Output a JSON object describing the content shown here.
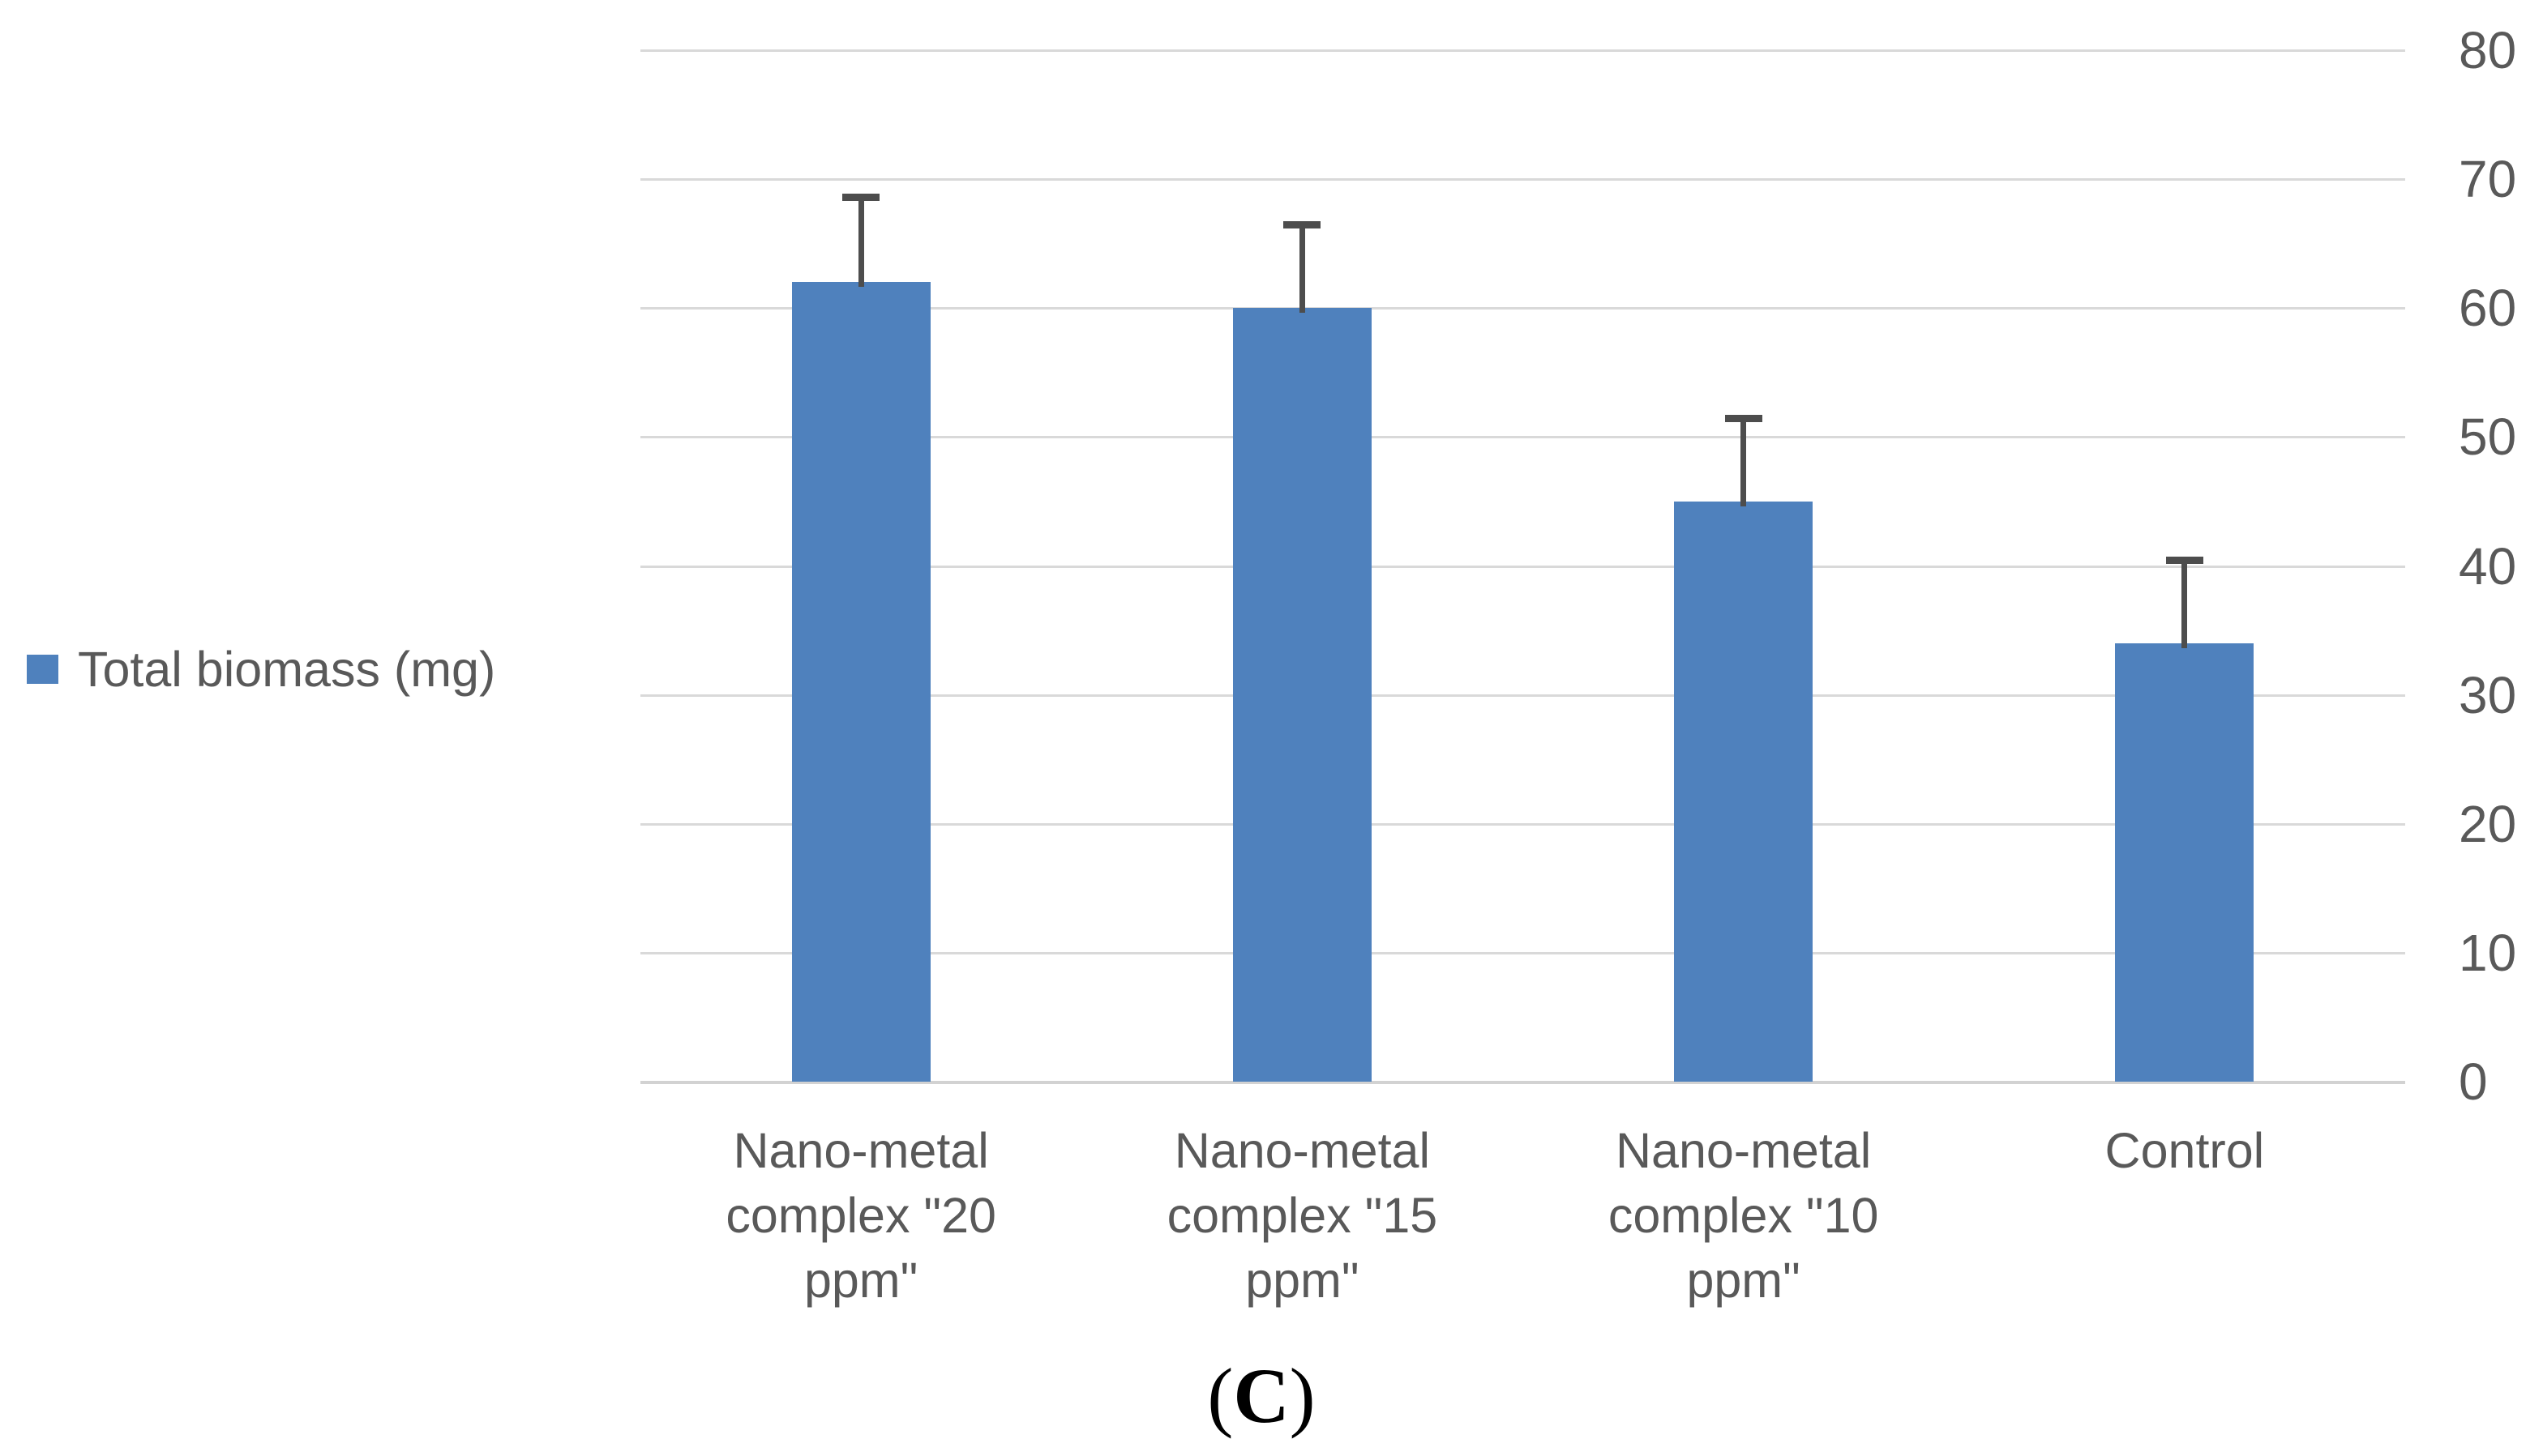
{
  "chart_data": {
    "type": "bar",
    "title": "",
    "xlabel": "",
    "ylabel": "",
    "categories": [
      "Nano-metal complex \"20 ppm\"",
      "Nano-metal complex \"15 ppm\"",
      "Nano-metal complex \"10 ppm\"",
      "Control"
    ],
    "category_lines": [
      [
        "Nano-metal",
        "complex \"20",
        "ppm\""
      ],
      [
        "Nano-metal",
        "complex \"15",
        "ppm\""
      ],
      [
        "Nano-metal",
        "complex \"10",
        "ppm\""
      ],
      [
        "Control"
      ]
    ],
    "series": [
      {
        "name": "Total biomass (mg)",
        "values": [
          62,
          60,
          45,
          34
        ],
        "error_plus": [
          6.6,
          6.5,
          6.5,
          6.5
        ]
      }
    ],
    "ylim": [
      0,
      80
    ],
    "yticks": [
      0,
      10,
      20,
      30,
      40,
      50,
      60,
      70,
      80
    ],
    "ytick_labels": [
      "0",
      "10",
      "20",
      "30",
      "40",
      "50",
      "60",
      "70",
      "80"
    ],
    "y_axis_side": "right",
    "grid": true,
    "legend_position": "left",
    "legend_entries": [
      "Total biomass (mg)"
    ]
  },
  "caption": {
    "open": "(",
    "letter": "C",
    "close": ")"
  },
  "colors": {
    "bar_fill": "#4F81BD",
    "gridline": "#D9D9D9",
    "axis_line": "#D2D2D2",
    "error_bar": "#4D4D4D",
    "axis_text": "#595959",
    "background": "#FFFFFF"
  }
}
